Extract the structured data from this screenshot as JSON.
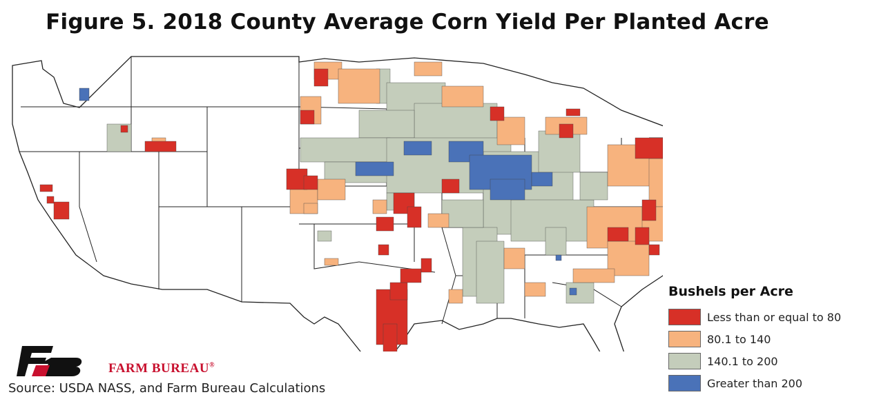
{
  "title": "Figure 5. 2018 County Average Corn Yield Per Planted Acre",
  "legend": {
    "title": "Bushels per Acre",
    "items": [
      {
        "label": "Less than or equal to 80",
        "color": "#d73027"
      },
      {
        "label": "80.1 to 140",
        "color": "#f7b37e"
      },
      {
        "label": "140.1 to 200",
        "color": "#c4cdbb"
      },
      {
        "label": "Greater than 200",
        "color": "#4a72b8"
      }
    ]
  },
  "logo": {
    "text": "FARM BUREAU",
    "mark": "®"
  },
  "source": "Source: USDA NASS, and Farm Bureau Calculations",
  "colors": {
    "state_border": "#222222",
    "county_border": "#333333",
    "no_data": "#ffffff"
  }
}
